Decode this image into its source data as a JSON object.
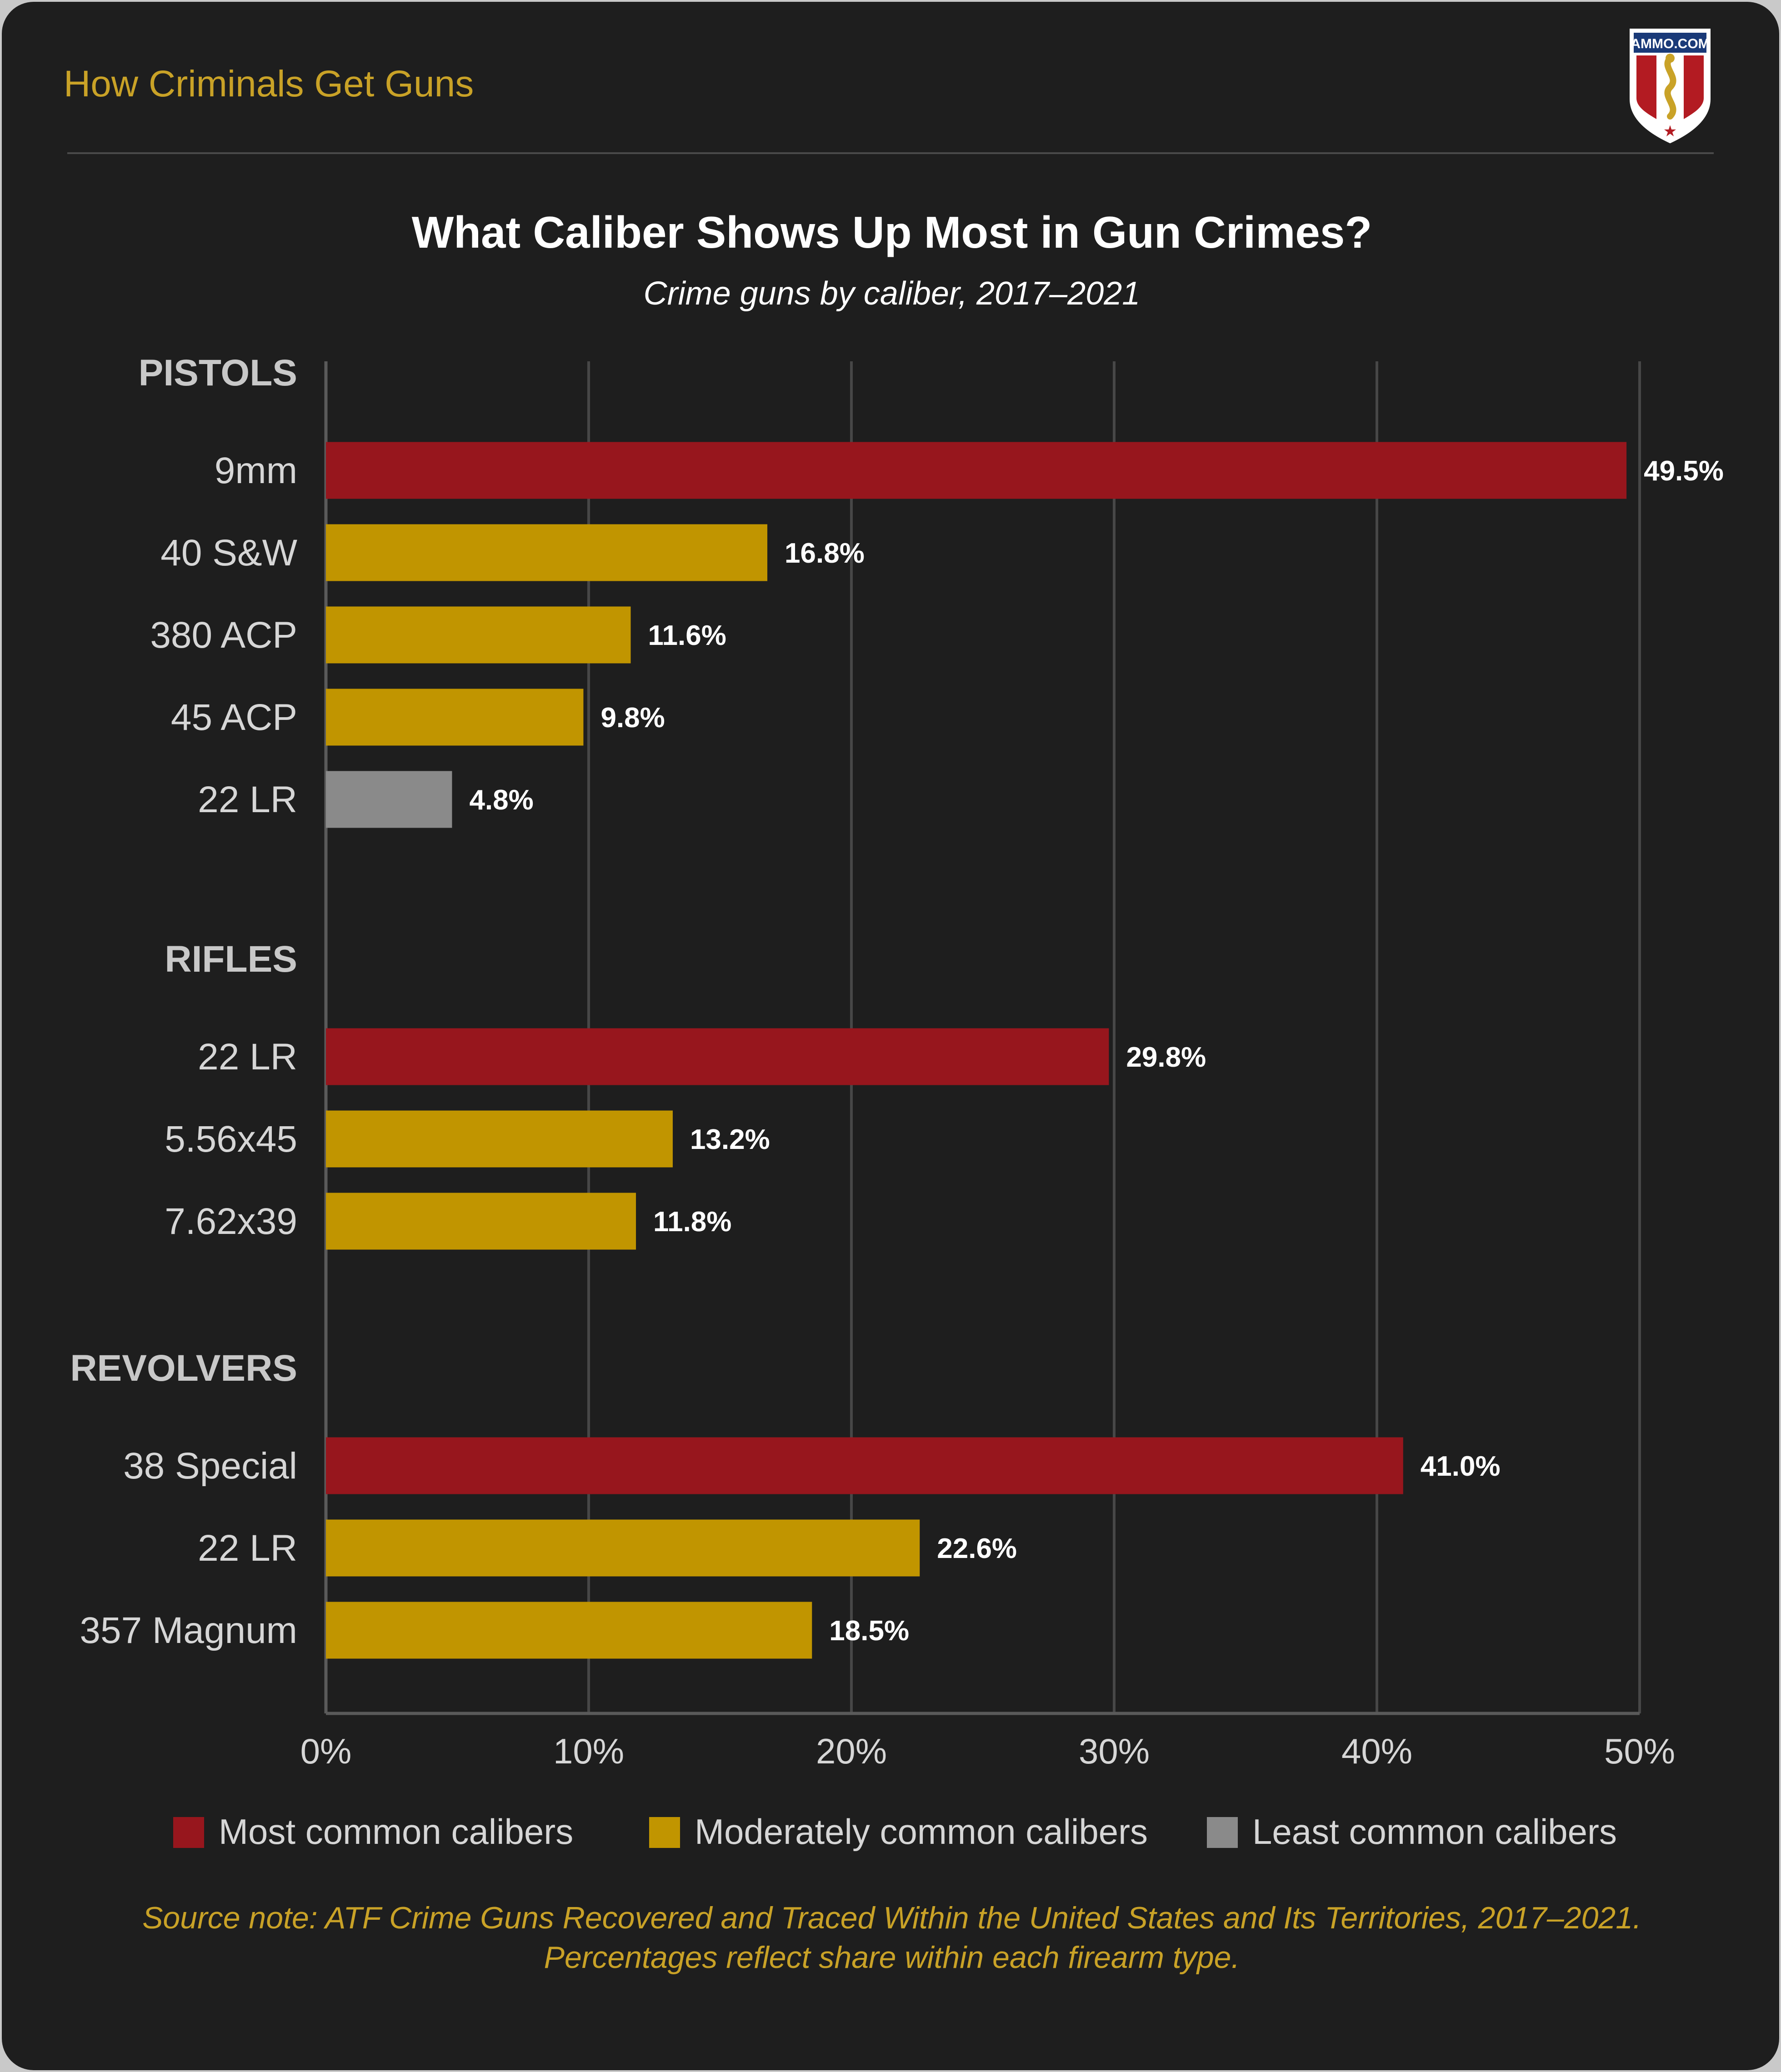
{
  "header": {
    "brand_text": "How Criminals Get Guns",
    "logo_text": "AMMO.COM",
    "logo_icon": "snake-shield-icon"
  },
  "colors": {
    "card_bg": "#1e1e1e",
    "page_bg": "#c9c9c9",
    "brand_gold": "#c9a227",
    "most_common": "#97161d",
    "moderately_common": "#c19500",
    "least_common": "#8a8a8a",
    "text_white": "#ffffff",
    "text_label": "#d6d6d6",
    "grid": "#474747"
  },
  "chart_data": {
    "type": "bar",
    "orientation": "horizontal",
    "title": "What Caliber Shows Up Most in Gun Crimes?",
    "subtitle": "Crime guns by caliber, 2017–2021",
    "xlim": [
      0,
      50
    ],
    "x_ticks": [
      "0%",
      "10%",
      "20%",
      "30%",
      "40%",
      "50%"
    ],
    "x_tick_values": [
      0,
      10,
      20,
      30,
      40,
      50
    ],
    "grid": true,
    "legend_position": "bottom",
    "legend": [
      {
        "key": "most",
        "label": "Most common calibers",
        "color": "#97161d"
      },
      {
        "key": "moderate",
        "label": "Moderately common calibers",
        "color": "#c19500"
      },
      {
        "key": "least",
        "label": "Least common calibers",
        "color": "#8a8a8a"
      }
    ],
    "groups": [
      {
        "name": "PISTOLS",
        "items": [
          {
            "label": "9mm",
            "value": 49.5,
            "value_label": "49.5%",
            "category": "most"
          },
          {
            "label": "40 S&W",
            "value": 16.8,
            "value_label": "16.8%",
            "category": "moderate"
          },
          {
            "label": "380 ACP",
            "value": 11.6,
            "value_label": "11.6%",
            "category": "moderate"
          },
          {
            "label": "45 ACP",
            "value": 9.8,
            "value_label": "9.8%",
            "category": "moderate"
          },
          {
            "label": "22 LR",
            "value": 4.8,
            "value_label": "4.8%",
            "category": "least"
          }
        ]
      },
      {
        "name": "RIFLES",
        "items": [
          {
            "label": "22 LR",
            "value": 29.8,
            "value_label": "29.8%",
            "category": "most"
          },
          {
            "label": "5.56x45",
            "value": 13.2,
            "value_label": "13.2%",
            "category": "moderate"
          },
          {
            "label": "7.62x39",
            "value": 11.8,
            "value_label": "11.8%",
            "category": "moderate"
          }
        ]
      },
      {
        "name": "REVOLVERS",
        "items": [
          {
            "label": "38 Special",
            "value": 41.0,
            "value_label": "41.0%",
            "category": "most"
          },
          {
            "label": "22 LR",
            "value": 22.6,
            "value_label": "22.6%",
            "category": "moderate"
          },
          {
            "label": "357 Magnum",
            "value": 18.5,
            "value_label": "18.5%",
            "category": "moderate"
          }
        ]
      }
    ]
  },
  "footer": {
    "source_line1": "Source note: ATF Crime Guns Recovered and Traced Within the United States and Its Territories, 2017–2021.",
    "source_line2": "Percentages reflect share within each firearm type."
  }
}
